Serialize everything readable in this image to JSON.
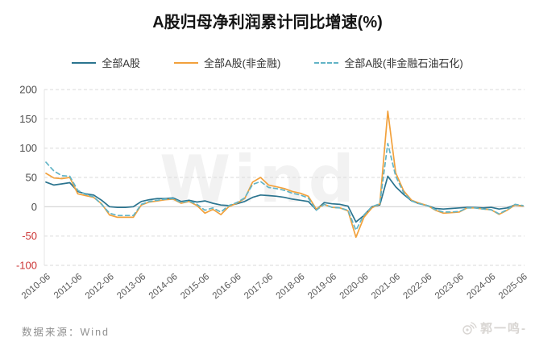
{
  "page": {
    "title": "A股归母净利润累计同比增速(%)",
    "source_note": "数据来源：Wind",
    "watermark_text": "Wind",
    "signature_text": "郭一鸣-"
  },
  "colors": {
    "axis_tick": "#4d4d4d",
    "axis_tick_negative": "#cc3333",
    "x_tick": "#595959",
    "gridline": "#d9d9d9",
    "zero_line": "#cccccc",
    "axis_line": "#e4e4e4",
    "series_all_a": "#2b748f",
    "series_non_financial": "#f2a13c",
    "series_non_financial_ex_oil": "#62b4c6"
  },
  "chart_data": {
    "type": "line",
    "title": "A股归母净利润累计同比增速(%)",
    "grid": "horizontal-dashed",
    "legend_position": "top",
    "ylim": [
      -100,
      200
    ],
    "yticks": [
      200,
      150,
      100,
      50,
      0,
      -50,
      -100
    ],
    "x": [
      "2010-06",
      "2010-09",
      "2010-12",
      "2011-03",
      "2011-06",
      "2011-09",
      "2011-12",
      "2012-03",
      "2012-06",
      "2012-09",
      "2012-12",
      "2013-03",
      "2013-06",
      "2013-09",
      "2013-12",
      "2014-03",
      "2014-06",
      "2014-09",
      "2014-12",
      "2015-03",
      "2015-06",
      "2015-09",
      "2015-12",
      "2016-03",
      "2016-06",
      "2016-09",
      "2016-12",
      "2017-03",
      "2017-06",
      "2017-09",
      "2017-12",
      "2018-03",
      "2018-06",
      "2018-09",
      "2018-12",
      "2019-03",
      "2019-06",
      "2019-09",
      "2019-12",
      "2020-03",
      "2020-06",
      "2020-09",
      "2020-12",
      "2021-03",
      "2021-06",
      "2021-09",
      "2021-12",
      "2022-03",
      "2022-06",
      "2022-09",
      "2022-12",
      "2023-03",
      "2023-06",
      "2023-09",
      "2023-12",
      "2024-03",
      "2024-06",
      "2024-09",
      "2024-12",
      "2025-03",
      "2025-06"
    ],
    "x_tick_labels": [
      "2010-06",
      "2011-06",
      "2012-06",
      "2013-06",
      "2014-06",
      "2015-06",
      "2016-06",
      "2017-06",
      "2018-06",
      "2019-06",
      "2020-06",
      "2021-06",
      "2022-06",
      "2023-06",
      "2024-06",
      "2025-06"
    ],
    "x_tick_step": 4,
    "series": [
      {
        "name": "全部A股",
        "key": "all-a-share",
        "color": "#2b748f",
        "dash": false,
        "values": [
          42,
          37,
          39,
          41,
          26,
          22,
          20,
          11,
          0,
          -1,
          -1,
          0,
          9,
          12,
          14,
          14,
          15,
          9,
          11,
          8,
          10,
          6,
          3,
          2,
          5,
          9,
          16,
          20,
          19,
          18,
          16,
          13,
          11,
          9,
          -5,
          7,
          5,
          4,
          1,
          -26,
          -15,
          0,
          3,
          52,
          34,
          21,
          10,
          5,
          2,
          -3,
          -4,
          -3,
          -2,
          -1,
          -1.5,
          -2,
          -1,
          -4,
          -2,
          3,
          1.5
        ]
      },
      {
        "name": "全部A股(非金融)",
        "key": "non-financial",
        "color": "#f2a13c",
        "dash": false,
        "values": [
          57,
          49,
          48,
          50,
          22,
          19,
          16,
          5,
          -14,
          -18,
          -18,
          -18,
          3,
          8,
          10,
          12,
          13,
          6,
          9,
          2,
          -11,
          -4.5,
          -13.5,
          0,
          6,
          14,
          42,
          50,
          37,
          34,
          31,
          26,
          23,
          18,
          -4,
          4,
          -1,
          -2,
          -7,
          -52,
          -18,
          -2,
          5,
          163,
          58,
          27,
          11,
          6,
          2,
          -6,
          -11,
          -10,
          -9,
          -2,
          -2,
          -4,
          -5,
          -13,
          -6,
          3,
          1
        ]
      },
      {
        "name": "全部A股(非金融石油石化)",
        "key": "non-financial-ex-oil-petchem",
        "color": "#62b4c6",
        "dash": true,
        "values": [
          76,
          61,
          53,
          52,
          28,
          21,
          17,
          4,
          -11,
          -15,
          -15,
          -15,
          4,
          9,
          11,
          13,
          14,
          7,
          10,
          4,
          -6,
          -2,
          -9,
          2,
          7,
          15,
          38,
          43,
          33,
          31,
          28,
          23,
          20,
          15,
          -6,
          4,
          -1,
          -2,
          -6,
          -40,
          -14,
          0,
          5,
          108,
          52,
          24,
          10,
          5,
          2,
          -5,
          -9,
          -9,
          -8,
          -2,
          -2,
          -4,
          -5,
          -12,
          -5,
          4,
          2
        ]
      }
    ]
  }
}
